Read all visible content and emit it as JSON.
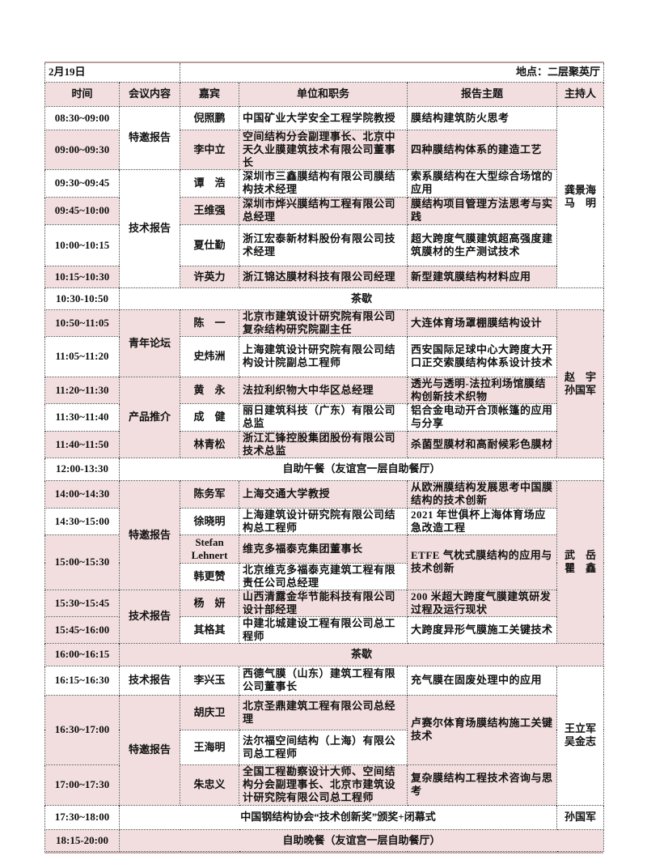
{
  "header": {
    "date": "2月19日",
    "location": "地点：二层聚英厅"
  },
  "columns": [
    "时间",
    "会议内容",
    "嘉宾",
    "单位和职务",
    "报告主题",
    "主持人"
  ],
  "colors": {
    "pink": "#f2dede",
    "border": "#444444"
  },
  "blocks": [
    {
      "type": "talks",
      "host": "龚景海\n马　明",
      "host_pink": false,
      "sessions": [
        {
          "label": "特邀报告",
          "pink": false,
          "slots": [
            {
              "time": "08:30~09:00",
              "time_pink": false,
              "topic": "膜结构建筑防火思考",
              "guests": [
                {
                  "name": "倪照鹏",
                  "unit": "中国矿业大学安全工程学院教授",
                  "pink": false
                }
              ]
            },
            {
              "time": "09:00~09:30",
              "time_pink": true,
              "topic": "四种膜结构体系的建造工艺",
              "guests": [
                {
                  "name": "李中立",
                  "unit": "空间结构分会副理事长、北京中天久业膜建筑技术有限公司董事长",
                  "pink": true
                }
              ]
            }
          ]
        },
        {
          "label": "技术报告",
          "pink": false,
          "slots": [
            {
              "time": "09:30~09:45",
              "time_pink": false,
              "topic": "索系膜结构在大型综合场馆的应用",
              "guests": [
                {
                  "name": "谭　浩",
                  "unit": "深圳市三鑫膜结构有限公司膜结构技术经理",
                  "pink": false
                }
              ]
            },
            {
              "time": "09:45~10:00",
              "time_pink": true,
              "topic": "膜结构项目管理方法思考与实践",
              "guests": [
                {
                  "name": "王维强",
                  "unit": "深圳市烨兴膜结构工程有限公司总经理",
                  "pink": true
                }
              ]
            },
            {
              "time": "10:00~10:15",
              "time_pink": false,
              "topic": "超大跨度气膜建筑超高强度建筑膜材的生产测试技术",
              "guests": [
                {
                  "name": "夏仕勤",
                  "unit": "浙江宏泰新材料股份有限公司技术经理",
                  "pink": false
                }
              ]
            },
            {
              "time": "10:15~10:30",
              "time_pink": true,
              "topic": "新型建筑膜结构材料应用",
              "guests": [
                {
                  "name": "许英力",
                  "unit": "浙江锦达膜材科技有限公司经理",
                  "pink": true
                }
              ]
            }
          ]
        }
      ]
    },
    {
      "type": "break",
      "time": "10:30-10:50",
      "text": "茶歇",
      "pink": false
    },
    {
      "type": "talks",
      "host": "赵　宇\n孙国军",
      "host_pink": true,
      "sessions": [
        {
          "label": "青年论坛",
          "pink": true,
          "slots": [
            {
              "time": "10:50~11:05",
              "time_pink": true,
              "topic": "大连体育场罩棚膜结构设计",
              "guests": [
                {
                  "name": "陈　一",
                  "unit": "北京市建筑设计研究院有限公司复杂结构研究院副主任",
                  "pink": true
                }
              ]
            },
            {
              "time": "11:05~11:20",
              "time_pink": false,
              "topic": "西安国际足球中心大跨度大开口正交索膜结构体系设计技术",
              "guests": [
                {
                  "name": "史炜洲",
                  "unit": "上海建筑设计研究院有限公司结构设计院副总工程师",
                  "pink": false
                }
              ]
            }
          ]
        },
        {
          "label": "产品推介",
          "pink": true,
          "slots": [
            {
              "time": "11:20~11:30",
              "time_pink": true,
              "topic": "透光与透明-法拉利场馆膜结构创新技术织物",
              "guests": [
                {
                  "name": "黄　永",
                  "unit": "法拉利织物大中华区总经理",
                  "pink": true
                }
              ]
            },
            {
              "time": "11:30~11:40",
              "time_pink": false,
              "topic": "铝合金电动开合顶帐篷的应用与分享",
              "guests": [
                {
                  "name": "成　健",
                  "unit": "丽日建筑科技（广东）有限公司总监",
                  "pink": false
                }
              ]
            },
            {
              "time": "11:40~11:50",
              "time_pink": true,
              "topic": "杀菌型膜材和高耐候彩色膜材",
              "guests": [
                {
                  "name": "林青松",
                  "unit": "浙江汇锋控股集团股份有限公司技术总监",
                  "pink": true
                }
              ]
            }
          ]
        }
      ]
    },
    {
      "type": "break",
      "time": "12:00-13:30",
      "text": "自助午餐（友谊宫一层自助餐厅）",
      "pink": false
    },
    {
      "type": "talks",
      "host": "武　岳\n瞿　鑫",
      "host_pink": true,
      "sessions": [
        {
          "label": "特邀报告",
          "pink": true,
          "slots": [
            {
              "time": "14:00~14:30",
              "time_pink": true,
              "topic": "从欧洲膜结构发展思考中国膜结构的技术创新",
              "guests": [
                {
                  "name": "陈务军",
                  "unit": "上海交通大学教授",
                  "pink": true
                }
              ]
            },
            {
              "time": "14:30~15:00",
              "time_pink": false,
              "topic": "2021 年世俱杯上海体育场应急改造工程",
              "guests": [
                {
                  "name": "徐晓明",
                  "unit": "上海建筑设计研究院有限公司结构总工程师",
                  "pink": false
                }
              ]
            },
            {
              "time": "15:00~15:30",
              "time_pink": true,
              "topic": "ETFE 气枕式膜结构的应用与技术创新",
              "topic_pink": true,
              "guests": [
                {
                  "name": "Stefan\nLehnert",
                  "unit": "维克多福泰克集团董事长",
                  "pink": true
                },
                {
                  "name": "韩更赞",
                  "unit": "北京维克多福泰克建筑工程有限责任公司总经理",
                  "pink": false
                }
              ]
            }
          ]
        },
        {
          "label": "技术报告",
          "pink": true,
          "slots": [
            {
              "time": "15:30~15:45",
              "time_pink": true,
              "topic": "200 米超大跨度气膜建筑研发过程及运行现状",
              "guests": [
                {
                  "name": "杨　妍",
                  "unit": "山西清露金华节能科技有限公司设计部经理",
                  "pink": true
                }
              ]
            },
            {
              "time": "15:45~16:00",
              "time_pink": true,
              "topic": "大跨度异形气膜施工关键技术",
              "guests": [
                {
                  "name": "其格其",
                  "unit": "中建北城建设工程有限公司总工程师",
                  "pink": false
                }
              ]
            }
          ]
        }
      ]
    },
    {
      "type": "break",
      "time": "16:00~16:15",
      "text": "茶歇",
      "pink": true
    },
    {
      "type": "talks",
      "host": "王立军\n吴金志",
      "host_pink": false,
      "sessions": [
        {
          "label": "技术报告",
          "pink": false,
          "slots": [
            {
              "time": "16:15~16:30",
              "time_pink": false,
              "topic": "充气膜在固废处理中的应用",
              "guests": [
                {
                  "name": "李兴玉",
                  "unit": "西德气膜（山东）建筑工程有限公司董事长",
                  "pink": false
                }
              ]
            }
          ]
        },
        {
          "label": "特邀报告",
          "pink": true,
          "slots": [
            {
              "time": "16:30~17:00",
              "time_pink": true,
              "topic": "卢赛尔体育场膜结构施工关键技术",
              "topic_pink": true,
              "guests": [
                {
                  "name": "胡庆卫",
                  "unit": "北京圣鼎建筑工程有限公司总经理",
                  "pink": true
                },
                {
                  "name": "王海明",
                  "unit": "法尔福空间结构（上海）有限公司总工程师",
                  "pink": false
                }
              ]
            },
            {
              "time": "17:00~17:30",
              "time_pink": true,
              "topic": "复杂膜结构工程技术咨询与思考",
              "guests": [
                {
                  "name": "朱忠义",
                  "unit": "全国工程勘察设计大师、空间结构分会副理事长、北京市建筑设计研究院有限公司总工程师",
                  "pink": true
                }
              ]
            }
          ]
        }
      ]
    },
    {
      "type": "break",
      "time": "17:30~18:00",
      "text": "中国钢结构协会“技术创新奖”颁奖+闭幕式",
      "host": "孙国军",
      "pink": false
    },
    {
      "type": "break",
      "time": "18:15-20:00",
      "text": "自助晚餐（友谊宫一层自助餐厅）",
      "pink": true
    }
  ]
}
